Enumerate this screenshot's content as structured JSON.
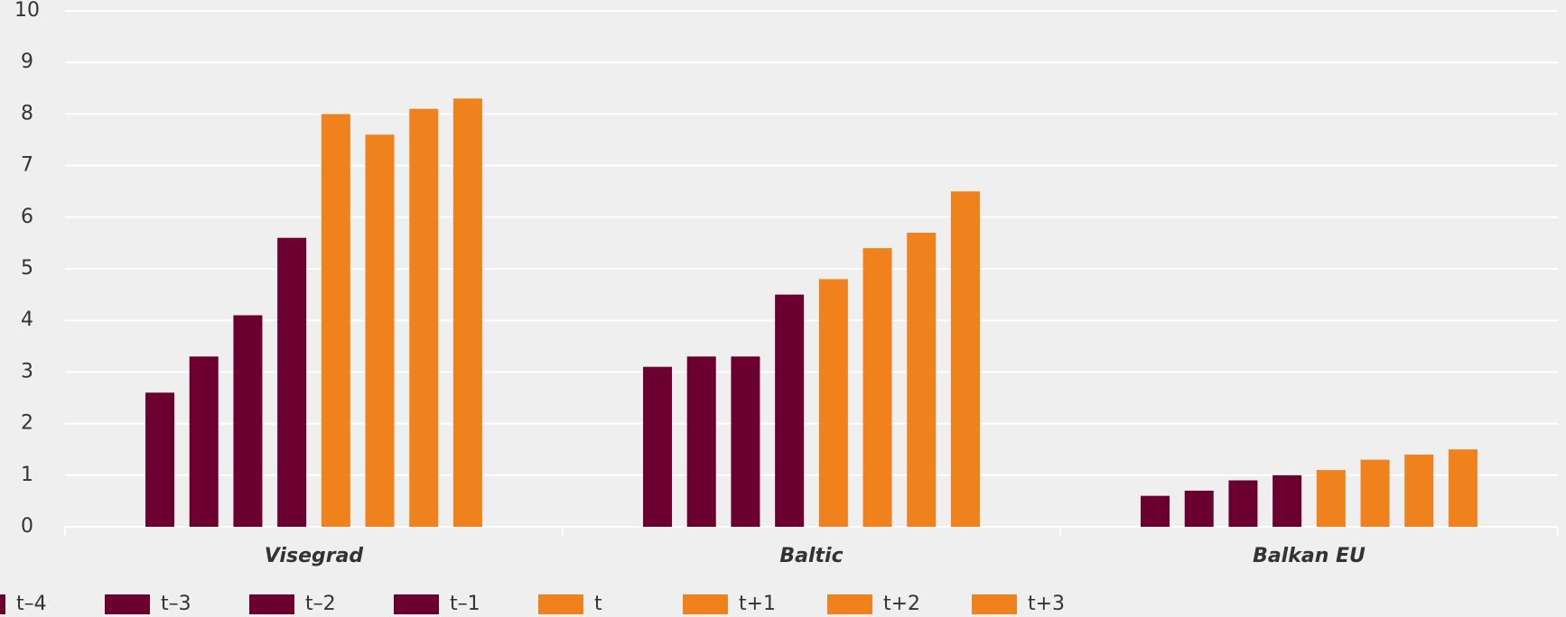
{
  "chart_data": {
    "type": "bar",
    "categories": [
      "Visegrad",
      "Baltic",
      "Balkan EU"
    ],
    "series": [
      {
        "name": "t–4",
        "color": "#6b0030",
        "values": [
          2.6,
          3.1,
          0.6
        ]
      },
      {
        "name": "t–3",
        "color": "#6b0030",
        "values": [
          3.3,
          3.3,
          0.7
        ]
      },
      {
        "name": "t–2",
        "color": "#6b0030",
        "values": [
          4.1,
          3.3,
          0.9
        ]
      },
      {
        "name": "t–1",
        "color": "#6b0030",
        "values": [
          5.6,
          4.5,
          1.0
        ]
      },
      {
        "name": "t",
        "color": "#f0821e",
        "values": [
          8.0,
          4.8,
          1.1
        ]
      },
      {
        "name": "t+1",
        "color": "#f0821e",
        "values": [
          7.6,
          5.4,
          1.3
        ]
      },
      {
        "name": "t+2",
        "color": "#f0821e",
        "values": [
          8.1,
          5.7,
          1.4
        ]
      },
      {
        "name": "t+3",
        "color": "#f0821e",
        "values": [
          8.3,
          6.5,
          1.5
        ]
      }
    ],
    "ylim": [
      0,
      10
    ],
    "yticks": [
      0,
      1,
      2,
      3,
      4,
      5,
      6,
      7,
      8,
      9,
      10
    ],
    "grid": true,
    "legend": "bottom"
  }
}
